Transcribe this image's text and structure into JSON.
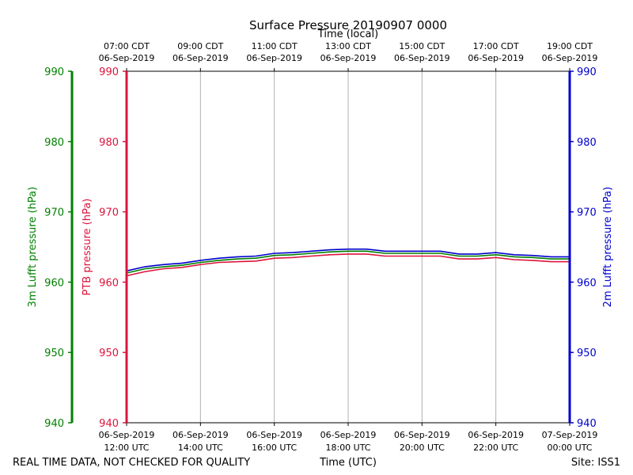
{
  "chart_data": {
    "type": "line",
    "title": "Surface Pressure 20190907 0000",
    "xlabel_top": "Time (local)",
    "xlabel_bottom": "Time (UTC)",
    "footer_left": "REAL TIME DATA, NOT CHECKED FOR QUALITY",
    "footer_right": "Site: ISS1",
    "x_ticks_bottom": [
      [
        "06-Sep-2019",
        "12:00 UTC"
      ],
      [
        "06-Sep-2019",
        "14:00 UTC"
      ],
      [
        "06-Sep-2019",
        "16:00 UTC"
      ],
      [
        "06-Sep-2019",
        "18:00 UTC"
      ],
      [
        "06-Sep-2019",
        "20:00 UTC"
      ],
      [
        "06-Sep-2019",
        "22:00 UTC"
      ],
      [
        "07-Sep-2019",
        "00:00 UTC"
      ]
    ],
    "x_ticks_top": [
      [
        "07:00 CDT",
        "06-Sep-2019"
      ],
      [
        "09:00 CDT",
        "06-Sep-2019"
      ],
      [
        "11:00 CDT",
        "06-Sep-2019"
      ],
      [
        "13:00 CDT",
        "06-Sep-2019"
      ],
      [
        "15:00 CDT",
        "06-Sep-2019"
      ],
      [
        "17:00 CDT",
        "06-Sep-2019"
      ],
      [
        "19:00 CDT",
        "06-Sep-2019"
      ]
    ],
    "x_hours_utc": [
      0,
      12
    ],
    "axes": {
      "outer_left": {
        "label": "3m Lufft pressure (hPa)",
        "color": "#008000",
        "ylim": [
          940,
          990
        ],
        "ticks": [
          940,
          950,
          960,
          970,
          980,
          990
        ]
      },
      "inner_left": {
        "label": "PTB pressure (hPa)",
        "color": "#dc143c",
        "ylim": [
          940,
          990
        ],
        "ticks": [
          940,
          950,
          960,
          970,
          980,
          990
        ]
      },
      "right": {
        "label": "2m Lufft pressure (hPa)",
        "color": "#0000cd",
        "ylim": [
          940,
          990
        ],
        "ticks": [
          940,
          950,
          960,
          970,
          980,
          990
        ]
      }
    },
    "grid": "vertical",
    "series": [
      {
        "color": "#0000cd",
        "x": [
          0,
          0.5,
          1,
          1.5,
          2,
          2.5,
          3,
          3.5,
          4,
          4.5,
          5,
          5.5,
          6,
          6.5,
          7,
          7.5,
          8,
          8.5,
          9,
          9.5,
          10,
          10.5,
          11,
          11.5,
          12
        ],
        "y": [
          961.6,
          962.2,
          962.5,
          962.7,
          963.1,
          963.4,
          963.6,
          963.7,
          964.1,
          964.2,
          964.4,
          964.6,
          964.7,
          964.7,
          964.4,
          964.4,
          964.4,
          964.4,
          964.0,
          964.0,
          964.2,
          963.9,
          963.8,
          963.6,
          963.6
        ]
      },
      {
        "color": "#008000",
        "x": [
          0,
          0.5,
          1,
          1.5,
          2,
          2.5,
          3,
          3.5,
          4,
          4.5,
          5,
          5.5,
          6,
          6.5,
          7,
          7.5,
          8,
          8.5,
          9,
          9.5,
          10,
          10.5,
          11,
          11.5,
          12
        ],
        "y": [
          961.3,
          961.9,
          962.2,
          962.4,
          962.8,
          963.1,
          963.3,
          963.4,
          963.8,
          963.9,
          964.1,
          964.3,
          964.4,
          964.4,
          964.1,
          964.1,
          964.1,
          964.1,
          963.7,
          963.7,
          963.9,
          963.6,
          963.5,
          963.3,
          963.3
        ]
      },
      {
        "color": "#dc143c",
        "x": [
          0,
          0.5,
          1,
          1.5,
          2,
          2.5,
          3,
          3.5,
          4,
          4.5,
          5,
          5.5,
          6,
          6.5,
          7,
          7.5,
          8,
          8.5,
          9,
          9.5,
          10,
          10.5,
          11,
          11.5,
          12
        ],
        "y": [
          960.9,
          961.5,
          961.9,
          962.1,
          962.5,
          962.8,
          962.9,
          963.0,
          963.4,
          963.5,
          963.7,
          963.9,
          964.0,
          964.0,
          963.7,
          963.7,
          963.7,
          963.7,
          963.3,
          963.3,
          963.5,
          963.2,
          963.1,
          962.9,
          962.9
        ]
      }
    ]
  }
}
